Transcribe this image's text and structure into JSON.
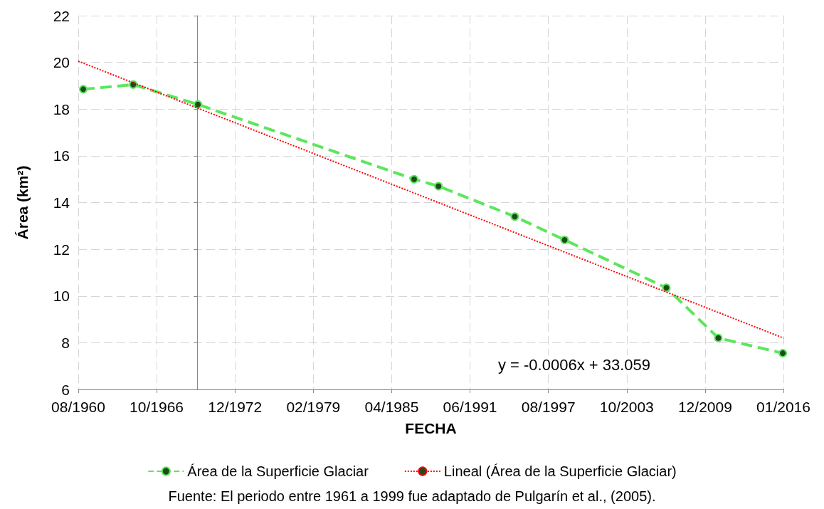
{
  "chart_data": {
    "type": "line",
    "xlabel": "FECHA",
    "ylabel": "Área (km²)",
    "series": [
      {
        "name": "Área de la Superficie Glaciar",
        "color": "#5ce65c",
        "line_style": "dashed",
        "marker": "circle",
        "x": [
          "1961-01-10",
          "1964-12-15",
          "1970-01-15",
          "1987-01-15",
          "1988-12-15",
          "1994-12-15",
          "1998-11-15",
          "2006-11-15",
          "2010-12-15",
          "2016-01-10"
        ],
        "values": [
          18.85,
          19.05,
          18.2,
          15.0,
          14.7,
          13.4,
          12.4,
          10.35,
          8.2,
          7.55
        ]
      },
      {
        "name": "Lineal (Área de la Superficie Glaciar)",
        "color": "#ff0000",
        "line_style": "dotted",
        "marker": "none",
        "x": [
          "1960-08-20",
          "2016-01-29"
        ],
        "values": [
          20.05,
          8.2
        ]
      }
    ],
    "xlim": [
      "1960-08-20",
      "2016-01-29"
    ],
    "xticks": [
      {
        "value": "1960-08-20",
        "label": "08/1960"
      },
      {
        "value": "1966-10-17",
        "label": "10/1966"
      },
      {
        "value": "1972-12-15",
        "label": "12/1972"
      },
      {
        "value": "1979-02-12",
        "label": "02/1979"
      },
      {
        "value": "1985-04-11",
        "label": "04/1985"
      },
      {
        "value": "1991-06-09",
        "label": "06/1991"
      },
      {
        "value": "1997-08-06",
        "label": "08/1997"
      },
      {
        "value": "2003-10-04",
        "label": "10/2003"
      },
      {
        "value": "2009-12-01",
        "label": "12/2009"
      },
      {
        "value": "2016-01-29",
        "label": "01/2016"
      }
    ],
    "ylim": [
      6,
      22
    ],
    "yticks": [
      6,
      8,
      10,
      12,
      14,
      16,
      18,
      20,
      22
    ],
    "grid": true,
    "legend": "bottom",
    "annotations": [
      "y = -0.0006x + 33.059",
      "Fuente: El periodo entre 1961 a 1999 fue adaptado de Pulgarín et al., (2005)."
    ]
  }
}
